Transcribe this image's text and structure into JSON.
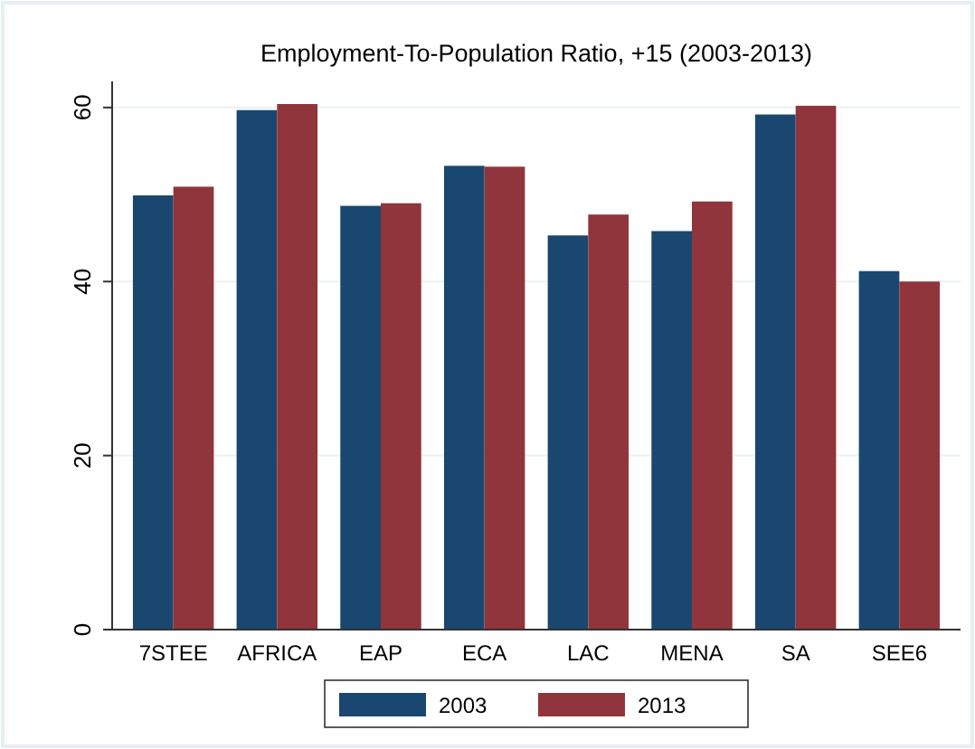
{
  "chart_data": {
    "type": "bar",
    "title": "Employment-To-Population Ratio, +15 (2003-2013)",
    "categories": [
      "7STEE",
      "AFRICA",
      "EAP",
      "ECA",
      "LAC",
      "MENA",
      "SA",
      "SEE6"
    ],
    "series": [
      {
        "name": "2003",
        "color": "#1a476f",
        "values": [
          49.9,
          59.7,
          48.7,
          53.3,
          45.3,
          45.8,
          59.2,
          41.2
        ]
      },
      {
        "name": "2013",
        "color": "#90353b",
        "values": [
          50.9,
          60.4,
          49.0,
          53.2,
          47.7,
          49.2,
          60.2,
          40.0
        ]
      }
    ],
    "ylim": [
      0,
      63
    ],
    "yticks": [
      0,
      20,
      40,
      60
    ],
    "grid": "y",
    "legend": "bottom"
  }
}
